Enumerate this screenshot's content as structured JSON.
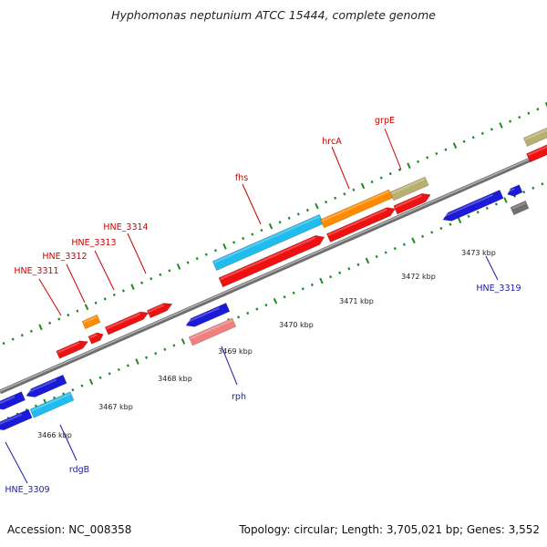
{
  "title": "Hyphomonas neptunium ATCC 15444, complete genome",
  "accession_text": "Accession: NC_008358",
  "stats_text": "Topology: circular; Length: 3,705,021 bp; Genes: 3,552",
  "colors": {
    "backbone": "#8a8a8a",
    "tick_green": "#1f8a1f",
    "label_red": "#cc0000",
    "label_blue": "#1a1aaa",
    "red": "#ee1111",
    "blue": "#1a1ad8",
    "cyan": "#22bbee",
    "orange": "#ff8c00",
    "khaki": "#b8b070",
    "pink": "#f08080",
    "gray": "#707070"
  },
  "ruler": {
    "unit": "kbp",
    "labels": [
      "3466 kbp",
      "3467 kbp",
      "3468 kbp",
      "3469 kbp",
      "3470 kbp",
      "3471 kbp",
      "3472 kbp",
      "3473 kbp"
    ]
  },
  "genes": [
    {
      "name": "HNE_3309",
      "strand": "minus",
      "color": "blue"
    },
    {
      "name": "rdgB",
      "strand": "minus",
      "color": "blue"
    },
    {
      "name": "HNE_3311",
      "strand": "plus",
      "color": "red"
    },
    {
      "name": "HNE_3312",
      "strand": "plus",
      "color": "red"
    },
    {
      "name": "HNE_3313",
      "strand": "plus",
      "color": "red"
    },
    {
      "name": "HNE_3314",
      "strand": "plus",
      "color": "red"
    },
    {
      "name": "rph",
      "strand": "minus",
      "color": "blue"
    },
    {
      "name": "fhs",
      "strand": "plus",
      "color": "red"
    },
    {
      "name": "hrcA",
      "strand": "plus",
      "color": "red"
    },
    {
      "name": "grpE",
      "strand": "plus",
      "color": "red"
    },
    {
      "name": "HNE_3319",
      "strand": "minus",
      "color": "blue"
    }
  ]
}
